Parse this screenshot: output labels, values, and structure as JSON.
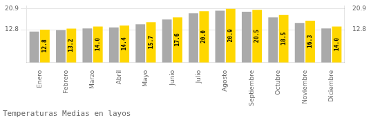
{
  "chart_data": {
    "type": "bar",
    "title": "Temperaturas Medias en layos",
    "categories": [
      "Enero",
      "Febrero",
      "Marzo",
      "Abril",
      "Mayo",
      "Junio",
      "Julio",
      "Agosto",
      "Septiembre",
      "Octubre",
      "Noviembre",
      "Diciembre"
    ],
    "series": [
      {
        "color": "#AAAAAA",
        "values": [
          12.1,
          12.6,
          13.3,
          13.7,
          14.9,
          16.8,
          19.2,
          20.2,
          19.8,
          17.6,
          15.4,
          13.3
        ]
      },
      {
        "color": "#FFD700",
        "values": [
          12.8,
          13.2,
          14.0,
          14.4,
          15.7,
          17.6,
          20.0,
          20.9,
          20.5,
          18.5,
          16.3,
          14.0
        ],
        "value_labels": [
          "12.8",
          "13.2",
          "14.0",
          "14.4",
          "15.7",
          "17.6",
          "20.0",
          "20.9",
          "20.5",
          "18.5",
          "16.3",
          "14.0"
        ],
        "data_labels": true
      }
    ],
    "ylim": [
      0,
      22.1
    ],
    "yticks": [
      12.8,
      20.9
    ],
    "y2lim": [
      0,
      22.1
    ],
    "y2ticks": [
      12.8,
      20.9
    ],
    "grid": true
  }
}
